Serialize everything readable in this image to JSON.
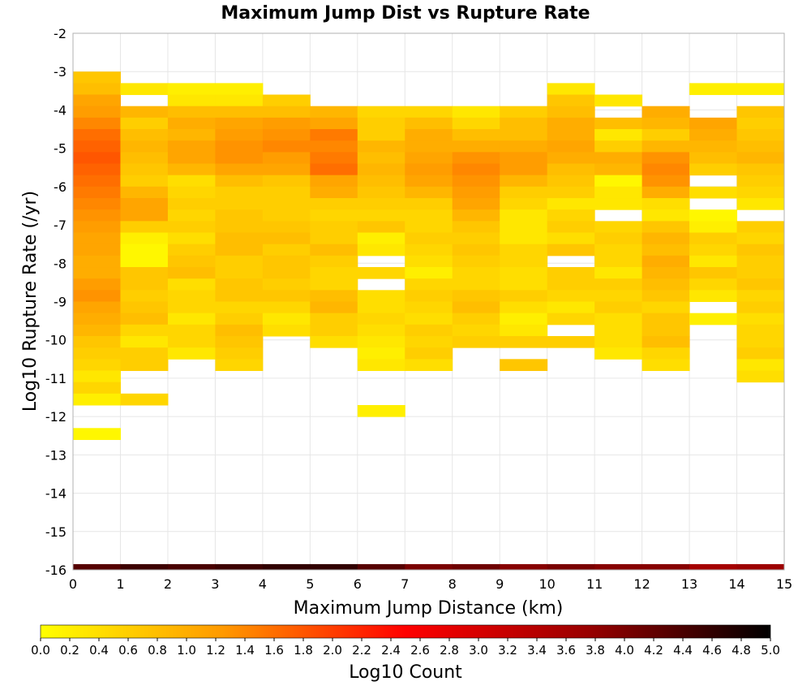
{
  "chart_data": {
    "type": "heatmap",
    "title": "Maximum Jump Dist vs Rupture Rate",
    "xlabel": "Maximum Jump Distance (km)",
    "ylabel": "Log10 Rupture Rate (/yr)",
    "xlim": [
      0,
      15
    ],
    "ylim": [
      -16,
      -2
    ],
    "x_ticks": [
      "0",
      "1",
      "2",
      "3",
      "4",
      "5",
      "6",
      "7",
      "8",
      "9",
      "10",
      "11",
      "12",
      "13",
      "14",
      "15"
    ],
    "y_ticks": [
      "-2",
      "-3",
      "-4",
      "-5",
      "-6",
      "-7",
      "-8",
      "-9",
      "-10",
      "-11",
      "-12",
      "-13",
      "-14",
      "-15",
      "-16"
    ],
    "grid": true,
    "bin_width_x": 1,
    "bin_height_y": 0.3,
    "colorbar": {
      "label": "Log10 Count",
      "min": 0.0,
      "max": 5.0,
      "ticks": [
        "0.0",
        "0.2",
        "0.4",
        "0.6",
        "0.8",
        "1.0",
        "1.2",
        "1.4",
        "1.6",
        "1.8",
        "2.0",
        "2.2",
        "2.4",
        "2.6",
        "2.8",
        "3.0",
        "3.2",
        "3.4",
        "3.6",
        "3.8",
        "4.0",
        "4.2",
        "4.4",
        "4.6",
        "4.8",
        "5.0"
      ],
      "colors": [
        "#ffff00",
        "#ff9900",
        "#ff0000",
        "#990000",
        "#000000"
      ]
    },
    "columns": [
      {
        "x0": 0,
        "y_start": -3.0,
        "values": [
          0.7,
          0.8,
          1.1,
          1.2,
          1.4,
          1.6,
          1.7,
          1.8,
          1.7,
          1.6,
          1.5,
          1.4,
          1.3,
          1.2,
          1.1,
          1.1,
          1.0,
          1.0,
          1.2,
          1.3,
          1.1,
          1.0,
          0.9,
          0.7,
          0.6,
          0.5,
          0.3,
          0.5,
          0.2,
          null,
          null,
          0.1
        ]
      },
      {
        "x0": 1,
        "y_start": -3.3,
        "values": [
          0.3,
          null,
          0.9,
          0.6,
          0.8,
          0.9,
          0.8,
          0.7,
          0.6,
          0.9,
          1.1,
          1.1,
          0.6,
          0.2,
          0.1,
          0.1,
          0.7,
          0.7,
          0.6,
          0.7,
          0.8,
          0.5,
          0.3,
          0.6,
          0.6,
          null,
          null,
          0.5
        ]
      },
      {
        "x0": 2,
        "y_start": -3.3,
        "values": [
          0.2,
          0.3,
          0.8,
          1.0,
          0.9,
          1.1,
          1.1,
          0.9,
          0.4,
          0.5,
          0.6,
          0.5,
          0.6,
          0.4,
          0.6,
          0.7,
          0.8,
          0.4,
          0.5,
          0.5,
          0.3,
          0.5,
          0.5,
          0.3
        ]
      },
      {
        "x0": 3,
        "y_start": -3.3,
        "values": [
          0.2,
          0.3,
          0.8,
          1.1,
          1.2,
          1.3,
          1.3,
          1.1,
          0.8,
          0.6,
          0.6,
          0.7,
          0.7,
          0.8,
          0.8,
          0.6,
          0.6,
          0.7,
          0.7,
          0.5,
          0.6,
          0.8,
          0.7,
          0.6,
          0.5
        ]
      },
      {
        "x0": 4,
        "y_start": -3.6,
        "values": [
          0.6,
          0.8,
          1.2,
          1.3,
          1.4,
          1.2,
          1.1,
          0.7,
          0.6,
          0.6,
          0.6,
          0.7,
          0.8,
          0.6,
          0.7,
          0.7,
          0.6,
          0.7,
          0.5,
          0.3,
          0.4
        ]
      },
      {
        "x0": 5,
        "y_start": -3.9,
        "values": [
          0.9,
          1.1,
          1.5,
          1.4,
          1.5,
          1.6,
          1.1,
          1.0,
          0.6,
          0.5,
          0.6,
          0.6,
          0.8,
          0.6,
          0.5,
          0.5,
          0.8,
          0.9,
          0.6,
          0.6,
          0.4
        ]
      },
      {
        "x0": 6,
        "y_start": -3.9,
        "values": [
          0.5,
          0.6,
          0.6,
          0.9,
          0.8,
          0.9,
          0.8,
          0.7,
          0.6,
          0.5,
          0.7,
          0.2,
          0.3,
          null,
          0.5,
          null,
          0.4,
          0.4,
          0.5,
          0.4,
          0.3,
          0.2,
          0.3,
          null,
          null,
          null,
          0.2
        ]
      },
      {
        "x0": 7,
        "y_start": -3.9,
        "values": [
          0.5,
          0.8,
          1.0,
          1.0,
          1.1,
          1.2,
          1.1,
          0.9,
          0.6,
          0.5,
          0.5,
          0.6,
          0.5,
          0.4,
          0.2,
          0.5,
          0.6,
          0.5,
          0.4,
          0.6,
          0.5,
          0.6,
          0.4
        ]
      },
      {
        "x0": 8,
        "y_start": -3.9,
        "values": [
          0.3,
          0.5,
          0.8,
          1.0,
          1.3,
          1.4,
          1.3,
          1.2,
          1.1,
          0.9,
          0.7,
          0.6,
          0.7,
          0.6,
          0.5,
          0.5,
          0.7,
          0.8,
          0.6,
          0.5,
          0.6
        ]
      },
      {
        "x0": 9,
        "y_start": -3.9,
        "values": [
          0.6,
          0.8,
          0.8,
          1.0,
          1.2,
          1.2,
          0.9,
          0.6,
          0.5,
          0.3,
          0.3,
          0.3,
          0.5,
          0.5,
          0.4,
          0.4,
          0.6,
          0.4,
          0.2,
          0.3,
          0.6,
          null,
          0.7
        ]
      },
      {
        "x0": 10,
        "y_start": -3.3,
        "values": [
          0.3,
          0.7,
          0.8,
          1.0,
          1.0,
          1.1,
          1.0,
          0.8,
          0.7,
          0.6,
          0.3,
          0.5,
          0.6,
          0.4,
          0.7,
          null,
          0.6,
          0.6,
          0.5,
          0.3,
          0.5,
          null,
          0.6
        ]
      },
      {
        "x0": 11,
        "y_start": -3.6,
        "values": [
          0.3,
          null,
          0.8,
          0.3,
          0.6,
          1.0,
          0.9,
          0.1,
          0.3,
          0.3,
          null,
          0.5,
          0.6,
          0.5,
          0.5,
          0.3,
          0.6,
          0.5,
          0.6,
          0.4,
          0.4,
          0.4,
          0.3
        ]
      },
      {
        "x0": 12,
        "y_start": -3.9,
        "values": [
          1.0,
          0.9,
          0.6,
          0.9,
          1.3,
          1.4,
          1.3,
          1.0,
          0.4,
          0.3,
          0.7,
          0.9,
          0.8,
          1.0,
          0.9,
          0.8,
          0.7,
          0.5,
          0.7,
          0.7,
          0.8,
          0.5,
          0.4
        ]
      },
      {
        "x0": 13,
        "y_start": -3.3,
        "values": [
          0.2,
          null,
          null,
          1.1,
          1.0,
          0.9,
          0.8,
          0.6,
          null,
          0.4,
          null,
          0.1,
          0.2,
          0.6,
          0.5,
          0.3,
          0.7,
          0.5,
          0.3,
          null,
          0.2
        ]
      },
      {
        "x0": 14,
        "y_start": -3.3,
        "values": [
          0.2,
          null,
          0.7,
          0.6,
          0.7,
          0.8,
          0.9,
          0.7,
          0.6,
          0.5,
          0.3,
          null,
          0.6,
          0.5,
          0.7,
          0.6,
          0.6,
          0.7,
          0.5,
          0.6,
          0.4,
          0.5,
          0.5,
          0.6,
          0.3,
          0.4
        ]
      }
    ],
    "bottom_row": {
      "y0": -16.0,
      "y1": -15.85,
      "values": [
        4.3,
        4.5,
        4.4,
        4.5,
        4.6,
        4.6,
        4.3,
        4.0,
        4.1,
        3.9,
        4.0,
        3.9,
        3.9,
        3.6,
        3.7
      ]
    }
  }
}
